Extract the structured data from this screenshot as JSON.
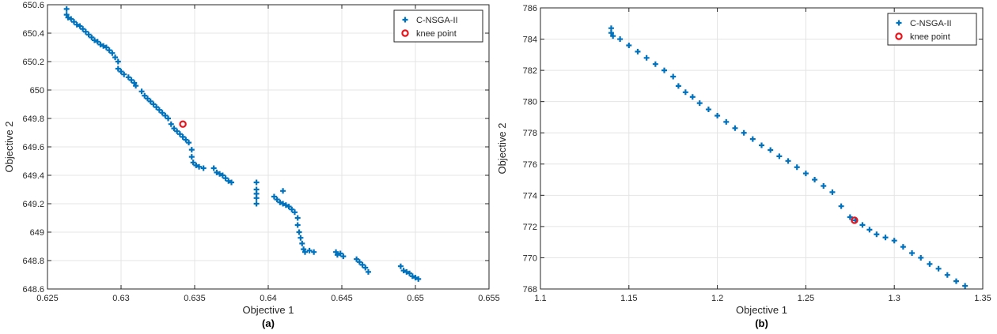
{
  "chart_data": [
    {
      "type": "scatter",
      "caption": "(a)",
      "xlabel": "Objective 1",
      "ylabel": "Objective 2",
      "xlim": [
        0.625,
        0.655
      ],
      "ylim": [
        648.6,
        650.6
      ],
      "xticks": [
        0.625,
        0.63,
        0.635,
        0.64,
        0.645,
        0.65,
        0.655
      ],
      "yticks": [
        648.6,
        648.8,
        649,
        649.2,
        649.4,
        649.6,
        649.8,
        650,
        650.2,
        650.4,
        650.6
      ],
      "xtick_labels": [
        "0.625",
        "0.63",
        "0.635",
        "0.64",
        "0.645",
        "0.65",
        "0.655"
      ],
      "ytick_labels": [
        "648.6",
        "648.8",
        "649",
        "649.2",
        "649.4",
        "649.6",
        "649.8",
        "650",
        "650.2",
        "650.4",
        "650.6"
      ],
      "grid": true,
      "legend_position": "top-right",
      "series": [
        {
          "name": "C-NSGA-II",
          "marker": "plus",
          "color": "#0072BD",
          "points": [
            [
              0.6263,
              650.57
            ],
            [
              0.6263,
              650.53
            ],
            [
              0.6264,
              650.51
            ],
            [
              0.6266,
              650.5
            ],
            [
              0.6268,
              650.48
            ],
            [
              0.627,
              650.46
            ],
            [
              0.6272,
              650.45
            ],
            [
              0.6274,
              650.43
            ],
            [
              0.6276,
              650.41
            ],
            [
              0.6278,
              650.39
            ],
            [
              0.628,
              650.37
            ],
            [
              0.6282,
              650.35
            ],
            [
              0.6284,
              650.34
            ],
            [
              0.6286,
              650.32
            ],
            [
              0.6288,
              650.31
            ],
            [
              0.629,
              650.3
            ],
            [
              0.6292,
              650.28
            ],
            [
              0.6294,
              650.26
            ],
            [
              0.6296,
              650.23
            ],
            [
              0.6298,
              650.2
            ],
            [
              0.6298,
              650.15
            ],
            [
              0.63,
              650.13
            ],
            [
              0.6302,
              650.11
            ],
            [
              0.6305,
              650.09
            ],
            [
              0.6307,
              650.07
            ],
            [
              0.6309,
              650.05
            ],
            [
              0.631,
              650.03
            ],
            [
              0.6314,
              649.99
            ],
            [
              0.6316,
              649.96
            ],
            [
              0.6318,
              649.94
            ],
            [
              0.632,
              649.92
            ],
            [
              0.6322,
              649.9
            ],
            [
              0.6324,
              649.88
            ],
            [
              0.6326,
              649.86
            ],
            [
              0.6328,
              649.84
            ],
            [
              0.633,
              649.82
            ],
            [
              0.6332,
              649.8
            ],
            [
              0.6334,
              649.76
            ],
            [
              0.6336,
              649.73
            ],
            [
              0.6338,
              649.71
            ],
            [
              0.634,
              649.69
            ],
            [
              0.6342,
              649.67
            ],
            [
              0.6344,
              649.65
            ],
            [
              0.6346,
              649.63
            ],
            [
              0.6348,
              649.58
            ],
            [
              0.6348,
              649.53
            ],
            [
              0.6349,
              649.49
            ],
            [
              0.6351,
              649.47
            ],
            [
              0.6353,
              649.46
            ],
            [
              0.6356,
              649.45
            ],
            [
              0.6363,
              649.45
            ],
            [
              0.6365,
              649.42
            ],
            [
              0.6367,
              649.41
            ],
            [
              0.6369,
              649.4
            ],
            [
              0.6371,
              649.38
            ],
            [
              0.6373,
              649.36
            ],
            [
              0.6375,
              649.35
            ],
            [
              0.6392,
              649.35
            ],
            [
              0.6392,
              649.3
            ],
            [
              0.6392,
              649.27
            ],
            [
              0.6392,
              649.24
            ],
            [
              0.6392,
              649.2
            ],
            [
              0.6404,
              649.25
            ],
            [
              0.6406,
              649.23
            ],
            [
              0.6408,
              649.21
            ],
            [
              0.641,
              649.29
            ],
            [
              0.641,
              649.2
            ],
            [
              0.6412,
              649.19
            ],
            [
              0.6414,
              649.18
            ],
            [
              0.6416,
              649.16
            ],
            [
              0.6418,
              649.14
            ],
            [
              0.642,
              649.1
            ],
            [
              0.642,
              649.05
            ],
            [
              0.6421,
              649.0
            ],
            [
              0.6422,
              648.96
            ],
            [
              0.6423,
              648.92
            ],
            [
              0.6424,
              648.88
            ],
            [
              0.6425,
              648.86
            ],
            [
              0.6428,
              648.87
            ],
            [
              0.6431,
              648.86
            ],
            [
              0.6446,
              648.86
            ],
            [
              0.6447,
              648.84
            ],
            [
              0.6449,
              648.85
            ],
            [
              0.6451,
              648.83
            ],
            [
              0.646,
              648.81
            ],
            [
              0.6462,
              648.79
            ],
            [
              0.6464,
              648.77
            ],
            [
              0.6466,
              648.75
            ],
            [
              0.6468,
              648.72
            ],
            [
              0.649,
              648.76
            ],
            [
              0.6492,
              648.73
            ],
            [
              0.6494,
              648.72
            ],
            [
              0.6496,
              648.71
            ],
            [
              0.6498,
              648.69
            ],
            [
              0.65,
              648.68
            ],
            [
              0.6502,
              648.67
            ]
          ]
        },
        {
          "name": "knee point",
          "marker": "circle",
          "color": "#E8141C",
          "points": [
            [
              0.6342,
              649.76
            ]
          ]
        }
      ]
    },
    {
      "type": "scatter",
      "caption": "(b)",
      "xlabel": "Objective 1",
      "ylabel": "Objective 2",
      "xlim": [
        1.1,
        1.35
      ],
      "ylim": [
        768,
        786
      ],
      "xticks": [
        1.1,
        1.15,
        1.2,
        1.25,
        1.3,
        1.35
      ],
      "yticks": [
        768,
        770,
        772,
        774,
        776,
        778,
        780,
        782,
        784,
        786
      ],
      "xtick_labels": [
        "1.1",
        "1.15",
        "1.2",
        "1.25",
        "1.3",
        "1.35"
      ],
      "ytick_labels": [
        "768",
        "770",
        "772",
        "774",
        "776",
        "778",
        "780",
        "782",
        "784",
        "786"
      ],
      "grid": true,
      "legend_position": "top-right",
      "series": [
        {
          "name": "C-NSGA-II",
          "marker": "plus",
          "color": "#0072BD",
          "points": [
            [
              1.14,
              784.7
            ],
            [
              1.14,
              784.4
            ],
            [
              1.141,
              784.2
            ],
            [
              1.145,
              784.0
            ],
            [
              1.15,
              783.6
            ],
            [
              1.155,
              783.2
            ],
            [
              1.16,
              782.8
            ],
            [
              1.165,
              782.4
            ],
            [
              1.17,
              782.0
            ],
            [
              1.175,
              781.6
            ],
            [
              1.178,
              781.0
            ],
            [
              1.182,
              780.6
            ],
            [
              1.186,
              780.3
            ],
            [
              1.19,
              779.9
            ],
            [
              1.195,
              779.5
            ],
            [
              1.2,
              779.1
            ],
            [
              1.205,
              778.7
            ],
            [
              1.21,
              778.3
            ],
            [
              1.215,
              778.0
            ],
            [
              1.22,
              777.6
            ],
            [
              1.225,
              777.2
            ],
            [
              1.23,
              776.9
            ],
            [
              1.235,
              776.5
            ],
            [
              1.24,
              776.2
            ],
            [
              1.245,
              775.8
            ],
            [
              1.25,
              775.4
            ],
            [
              1.255,
              775.0
            ],
            [
              1.26,
              774.6
            ],
            [
              1.265,
              774.2
            ],
            [
              1.27,
              773.3
            ],
            [
              1.275,
              772.6
            ],
            [
              1.278,
              772.4
            ],
            [
              1.282,
              772.1
            ],
            [
              1.286,
              771.8
            ],
            [
              1.29,
              771.5
            ],
            [
              1.295,
              771.3
            ],
            [
              1.3,
              771.1
            ],
            [
              1.305,
              770.7
            ],
            [
              1.31,
              770.3
            ],
            [
              1.315,
              770.0
            ],
            [
              1.32,
              769.6
            ],
            [
              1.325,
              769.3
            ],
            [
              1.33,
              768.9
            ],
            [
              1.335,
              768.5
            ],
            [
              1.34,
              768.2
            ]
          ]
        },
        {
          "name": "knee point",
          "marker": "circle",
          "color": "#E8141C",
          "points": [
            [
              1.2775,
              772.4
            ]
          ]
        }
      ]
    }
  ]
}
